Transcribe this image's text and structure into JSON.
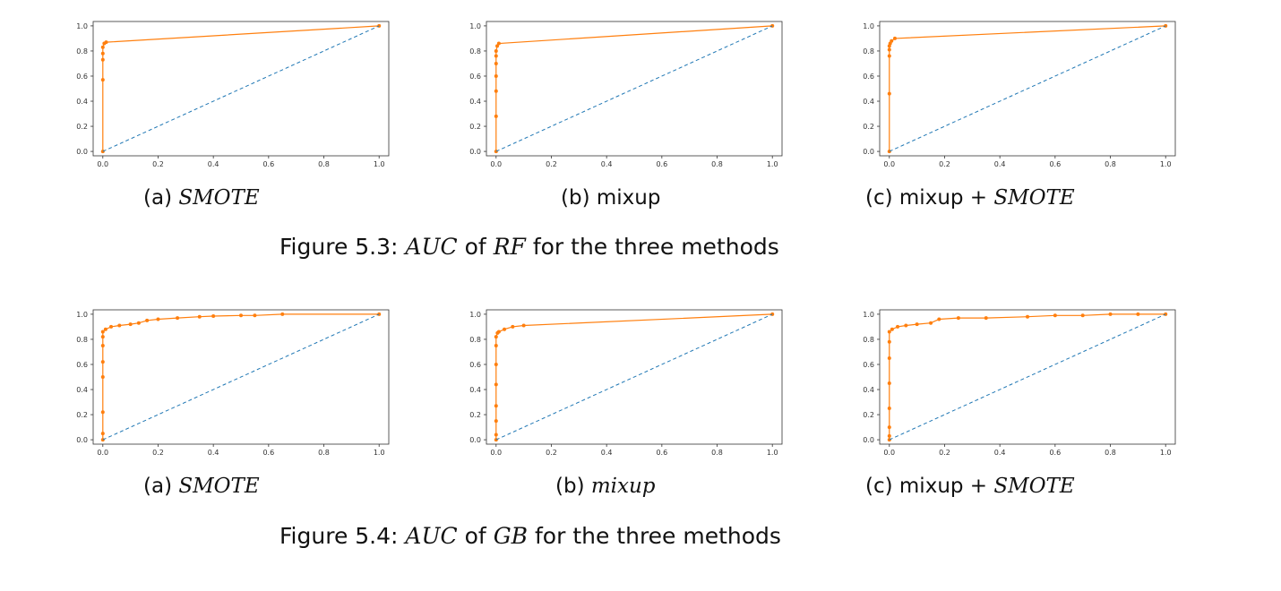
{
  "figures": [
    {
      "label": "Figure 5.3:",
      "metric": "AUC",
      "of_word": "of",
      "model": "RF",
      "rest": "for the three methods"
    },
    {
      "label": "Figure 5.4:",
      "metric": "AUC",
      "of_word": "of",
      "model": "GB",
      "rest": "for the three methods"
    }
  ],
  "subcaptions": [
    [
      {
        "tag": "(a)",
        "plain": "",
        "math": "SMOTE"
      },
      {
        "tag": "(b)",
        "plain": "mixup",
        "math": ""
      },
      {
        "tag": "(c)",
        "plain": "mixup +",
        "math": "SMOTE"
      }
    ],
    [
      {
        "tag": "(a)",
        "plain": "",
        "math": "SMOTE"
      },
      {
        "tag": "(b)",
        "plain": "",
        "math": "mixup"
      },
      {
        "tag": "(c)",
        "plain": "mixup +",
        "math": "SMOTE"
      }
    ]
  ],
  "colors": {
    "roc": "#ff7f0e",
    "diagonal": "#1f77b4",
    "axis": "#333333"
  },
  "chart_data": [
    {
      "type": "line",
      "xlim": [
        0,
        1
      ],
      "ylim": [
        0,
        1
      ],
      "xticks": [
        "0.0",
        "0.2",
        "0.4",
        "0.6",
        "0.8",
        "1.0"
      ],
      "yticks": [
        "0.0",
        "0.2",
        "0.4",
        "0.6",
        "0.8",
        "1.0"
      ],
      "grid": false,
      "series": [
        {
          "style": "solid-markers",
          "x": [
            0.0,
            0.0,
            0.0,
            0.0,
            0.0,
            0.005,
            0.012,
            1.0
          ],
          "y": [
            0.0,
            0.57,
            0.73,
            0.78,
            0.83,
            0.86,
            0.87,
            1.0
          ]
        },
        {
          "style": "dashed",
          "x": [
            0,
            1
          ],
          "y": [
            0,
            1
          ]
        }
      ]
    },
    {
      "type": "line",
      "xlim": [
        0,
        1
      ],
      "ylim": [
        0,
        1
      ],
      "xticks": [
        "0.0",
        "0.2",
        "0.4",
        "0.6",
        "0.8",
        "1.0"
      ],
      "yticks": [
        "0.0",
        "0.2",
        "0.4",
        "0.6",
        "0.8",
        "1.0"
      ],
      "grid": false,
      "series": [
        {
          "style": "solid-markers",
          "x": [
            0.0,
            0.0,
            0.0,
            0.0,
            0.0,
            0.0,
            0.0,
            0.004,
            0.01,
            1.0
          ],
          "y": [
            0.0,
            0.28,
            0.48,
            0.6,
            0.7,
            0.76,
            0.8,
            0.84,
            0.86,
            1.0
          ]
        },
        {
          "style": "dashed",
          "x": [
            0,
            1
          ],
          "y": [
            0,
            1
          ]
        }
      ]
    },
    {
      "type": "line",
      "xlim": [
        0,
        1
      ],
      "ylim": [
        0,
        1
      ],
      "xticks": [
        "0.0",
        "0.2",
        "0.4",
        "0.6",
        "0.8",
        "1.0"
      ],
      "yticks": [
        "0.0",
        "0.2",
        "0.4",
        "0.6",
        "0.8",
        "1.0"
      ],
      "grid": false,
      "series": [
        {
          "style": "solid-markers",
          "x": [
            0.0,
            0.0,
            0.0,
            0.0,
            0.0,
            0.003,
            0.008,
            0.02,
            1.0
          ],
          "y": [
            0.0,
            0.46,
            0.76,
            0.81,
            0.84,
            0.86,
            0.88,
            0.9,
            1.0
          ]
        },
        {
          "style": "dashed",
          "x": [
            0,
            1
          ],
          "y": [
            0,
            1
          ]
        }
      ]
    },
    {
      "type": "line",
      "xlim": [
        0,
        1
      ],
      "ylim": [
        0,
        1
      ],
      "xticks": [
        "0.0",
        "0.2",
        "0.4",
        "0.6",
        "0.8",
        "1.0"
      ],
      "yticks": [
        "0.0",
        "0.2",
        "0.4",
        "0.6",
        "0.8",
        "1.0"
      ],
      "grid": false,
      "series": [
        {
          "style": "solid-markers",
          "x": [
            0.0,
            0.0,
            0.0,
            0.0,
            0.0,
            0.0,
            0.0,
            0.0,
            0.01,
            0.03,
            0.06,
            0.1,
            0.13,
            0.16,
            0.2,
            0.27,
            0.35,
            0.4,
            0.5,
            0.55,
            0.65,
            1.0
          ],
          "y": [
            0.0,
            0.05,
            0.22,
            0.5,
            0.62,
            0.75,
            0.82,
            0.86,
            0.88,
            0.9,
            0.91,
            0.92,
            0.93,
            0.95,
            0.96,
            0.97,
            0.98,
            0.985,
            0.99,
            0.99,
            1.0,
            1.0
          ]
        },
        {
          "style": "dashed",
          "x": [
            0,
            1
          ],
          "y": [
            0,
            1
          ]
        }
      ]
    },
    {
      "type": "line",
      "xlim": [
        0,
        1
      ],
      "ylim": [
        0,
        1
      ],
      "xticks": [
        "0.0",
        "0.2",
        "0.4",
        "0.6",
        "0.8",
        "1.0"
      ],
      "yticks": [
        "0.0",
        "0.2",
        "0.4",
        "0.6",
        "0.8",
        "1.0"
      ],
      "grid": false,
      "series": [
        {
          "style": "solid-markers",
          "x": [
            0.0,
            0.0,
            0.0,
            0.0,
            0.0,
            0.0,
            0.0,
            0.0,
            0.005,
            0.01,
            0.03,
            0.06,
            0.1,
            1.0
          ],
          "y": [
            0.0,
            0.04,
            0.15,
            0.27,
            0.44,
            0.6,
            0.75,
            0.82,
            0.85,
            0.86,
            0.88,
            0.9,
            0.91,
            1.0
          ]
        },
        {
          "style": "dashed",
          "x": [
            0,
            1
          ],
          "y": [
            0,
            1
          ]
        }
      ]
    },
    {
      "type": "line",
      "xlim": [
        0,
        1
      ],
      "ylim": [
        0,
        1
      ],
      "xticks": [
        "0.0",
        "0.2",
        "0.4",
        "0.6",
        "0.8",
        "1.0"
      ],
      "yticks": [
        "0.0",
        "0.2",
        "0.4",
        "0.6",
        "0.8",
        "1.0"
      ],
      "grid": false,
      "series": [
        {
          "style": "solid-markers",
          "x": [
            0.0,
            0.0,
            0.0,
            0.0,
            0.0,
            0.0,
            0.0,
            0.0,
            0.01,
            0.03,
            0.06,
            0.1,
            0.15,
            0.18,
            0.25,
            0.35,
            0.5,
            0.6,
            0.7,
            0.8,
            0.9,
            1.0
          ],
          "y": [
            0.0,
            0.03,
            0.1,
            0.25,
            0.45,
            0.65,
            0.78,
            0.86,
            0.88,
            0.9,
            0.91,
            0.92,
            0.93,
            0.96,
            0.97,
            0.97,
            0.98,
            0.99,
            0.99,
            1.0,
            1.0,
            1.0
          ]
        },
        {
          "style": "dashed",
          "x": [
            0,
            1
          ],
          "y": [
            0,
            1
          ]
        }
      ]
    }
  ]
}
